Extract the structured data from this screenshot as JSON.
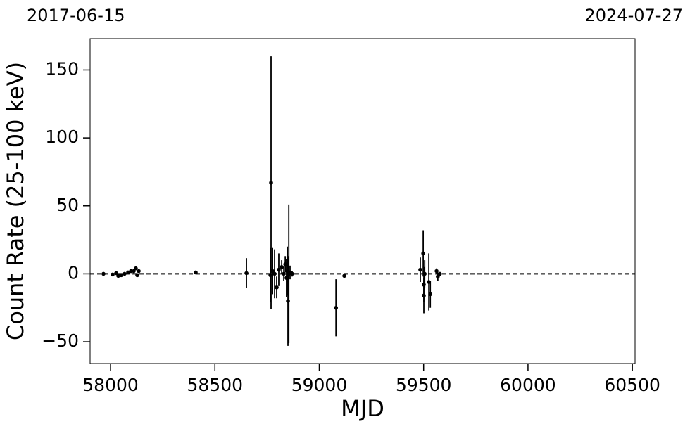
{
  "chart_data": {
    "type": "errorbar",
    "xlabel": "MJD",
    "ylabel": "Count Rate (25-100 keV)",
    "top_labels": [
      "2017-06-15",
      "2024-07-27"
    ],
    "xlim": [
      57902,
      60513
    ],
    "ylim": [
      -66,
      173
    ],
    "xticks": [
      58000,
      58500,
      59000,
      59500,
      60000,
      60500
    ],
    "yticks": [
      {
        "value": -50,
        "label": "−50"
      },
      0,
      50,
      100,
      150
    ],
    "hline": 0,
    "color": "#000000",
    "x": [
      57966,
      58010,
      58027,
      58037,
      58051,
      58067,
      58084,
      58098,
      58111,
      58121,
      58128,
      58135,
      58408,
      58651,
      58769,
      58766,
      58776,
      58786,
      58796,
      58806,
      58820,
      58830,
      58837,
      58843,
      58847,
      58850,
      58854,
      58860,
      58870,
      59080,
      59120,
      59484,
      59498,
      59501,
      59501,
      59505,
      59525,
      59532,
      59562,
      59568,
      59578
    ],
    "values": [
      0,
      -0.5,
      0.5,
      -1.5,
      -1,
      0,
      1,
      2,
      2,
      4,
      -1,
      2,
      1,
      0.5,
      67,
      -1,
      2,
      0,
      -10,
      3,
      5,
      0,
      7,
      -3,
      2,
      -20,
      0,
      1,
      0,
      -25,
      -1.5,
      3,
      15,
      -8,
      -16,
      0,
      -6,
      -15,
      2,
      -2,
      0
    ],
    "errors": [
      1,
      1,
      1,
      1,
      1,
      1,
      1,
      1,
      1,
      1,
      1,
      1,
      1,
      11,
      93,
      20,
      17,
      18,
      8,
      12,
      5,
      5,
      6,
      14,
      18,
      33,
      51,
      5,
      2,
      21,
      1,
      9,
      17,
      13,
      13,
      10,
      21,
      10,
      2,
      3,
      1
    ]
  }
}
